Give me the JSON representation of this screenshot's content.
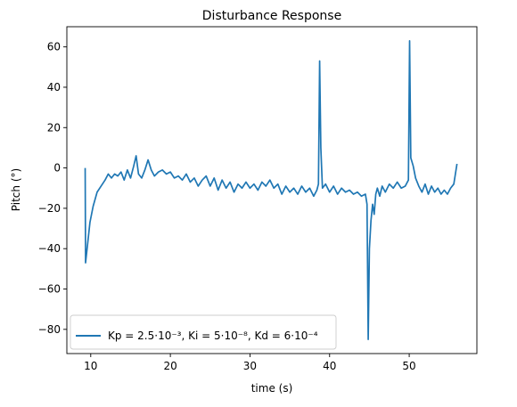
{
  "chart_data": {
    "type": "line",
    "title": "Disturbance Response",
    "xlabel": "time (s)",
    "ylabel": "Pitch (°)",
    "xlim": [
      7.0,
      58.5
    ],
    "ylim": [
      -92,
      70
    ],
    "xticks": [
      10,
      20,
      30,
      40,
      50
    ],
    "yticks": [
      -80,
      -60,
      -40,
      -20,
      0,
      20,
      40,
      60
    ],
    "legend": {
      "position": "lower-left",
      "label": "Kp = 2.5·10⁻³, Ki = 5·10⁻⁸, Kd = 6·10⁻⁴"
    },
    "series": [
      {
        "name": "Kp = 2.5·10⁻³, Ki = 5·10⁻⁸, Kd = 6·10⁻⁴",
        "color": "#1f77b4",
        "points": [
          [
            9.3,
            0
          ],
          [
            9.35,
            -47
          ],
          [
            9.6,
            -38
          ],
          [
            9.9,
            -27
          ],
          [
            10.3,
            -19
          ],
          [
            10.8,
            -12
          ],
          [
            11.3,
            -9
          ],
          [
            11.8,
            -6
          ],
          [
            12.2,
            -3
          ],
          [
            12.6,
            -5
          ],
          [
            13.0,
            -3
          ],
          [
            13.4,
            -4
          ],
          [
            13.8,
            -2
          ],
          [
            14.2,
            -6
          ],
          [
            14.6,
            -1
          ],
          [
            15.0,
            -5
          ],
          [
            15.4,
            1
          ],
          [
            15.7,
            6
          ],
          [
            16.0,
            -3
          ],
          [
            16.4,
            -5
          ],
          [
            16.8,
            -1
          ],
          [
            17.2,
            4
          ],
          [
            17.6,
            -1
          ],
          [
            18.0,
            -4
          ],
          [
            18.5,
            -2
          ],
          [
            19.0,
            -1
          ],
          [
            19.5,
            -3
          ],
          [
            20.0,
            -2
          ],
          [
            20.5,
            -5
          ],
          [
            21.0,
            -4
          ],
          [
            21.5,
            -6
          ],
          [
            22.0,
            -3
          ],
          [
            22.5,
            -7
          ],
          [
            23.0,
            -5
          ],
          [
            23.5,
            -9
          ],
          [
            24.0,
            -6
          ],
          [
            24.5,
            -4
          ],
          [
            25.0,
            -9
          ],
          [
            25.5,
            -5
          ],
          [
            26.0,
            -11
          ],
          [
            26.5,
            -6
          ],
          [
            27.0,
            -10
          ],
          [
            27.5,
            -7
          ],
          [
            28.0,
            -12
          ],
          [
            28.5,
            -8
          ],
          [
            29.0,
            -10
          ],
          [
            29.5,
            -7
          ],
          [
            30.0,
            -10
          ],
          [
            30.5,
            -8
          ],
          [
            31.0,
            -11
          ],
          [
            31.5,
            -7
          ],
          [
            32.0,
            -9
          ],
          [
            32.5,
            -6
          ],
          [
            33.0,
            -10
          ],
          [
            33.5,
            -8
          ],
          [
            34.0,
            -13
          ],
          [
            34.5,
            -9
          ],
          [
            35.0,
            -12
          ],
          [
            35.5,
            -10
          ],
          [
            36.0,
            -13
          ],
          [
            36.5,
            -9
          ],
          [
            37.0,
            -12
          ],
          [
            37.5,
            -10
          ],
          [
            38.0,
            -14
          ],
          [
            38.4,
            -11
          ],
          [
            38.6,
            -8
          ],
          [
            38.75,
            53
          ],
          [
            38.9,
            10
          ],
          [
            39.1,
            -10
          ],
          [
            39.5,
            -8
          ],
          [
            40.0,
            -12
          ],
          [
            40.5,
            -9
          ],
          [
            41.0,
            -13
          ],
          [
            41.5,
            -10
          ],
          [
            42.0,
            -12
          ],
          [
            42.5,
            -11
          ],
          [
            43.0,
            -13
          ],
          [
            43.5,
            -12
          ],
          [
            44.0,
            -14
          ],
          [
            44.5,
            -13
          ],
          [
            44.7,
            -18
          ],
          [
            44.85,
            -85
          ],
          [
            45.0,
            -40
          ],
          [
            45.2,
            -26
          ],
          [
            45.4,
            -18
          ],
          [
            45.6,
            -23
          ],
          [
            45.8,
            -13
          ],
          [
            46.0,
            -10
          ],
          [
            46.3,
            -14
          ],
          [
            46.6,
            -9
          ],
          [
            47.0,
            -12
          ],
          [
            47.5,
            -8
          ],
          [
            48.0,
            -10
          ],
          [
            48.5,
            -7
          ],
          [
            49.0,
            -10
          ],
          [
            49.5,
            -9
          ],
          [
            49.9,
            -6
          ],
          [
            50.05,
            63
          ],
          [
            50.2,
            5
          ],
          [
            50.5,
            1
          ],
          [
            50.8,
            -5
          ],
          [
            51.2,
            -9
          ],
          [
            51.6,
            -12
          ],
          [
            52.0,
            -8
          ],
          [
            52.4,
            -13
          ],
          [
            52.8,
            -9
          ],
          [
            53.2,
            -12
          ],
          [
            53.6,
            -10
          ],
          [
            54.0,
            -13
          ],
          [
            54.4,
            -11
          ],
          [
            54.8,
            -13
          ],
          [
            55.2,
            -10
          ],
          [
            55.6,
            -8
          ],
          [
            56.0,
            2
          ]
        ]
      }
    ]
  }
}
